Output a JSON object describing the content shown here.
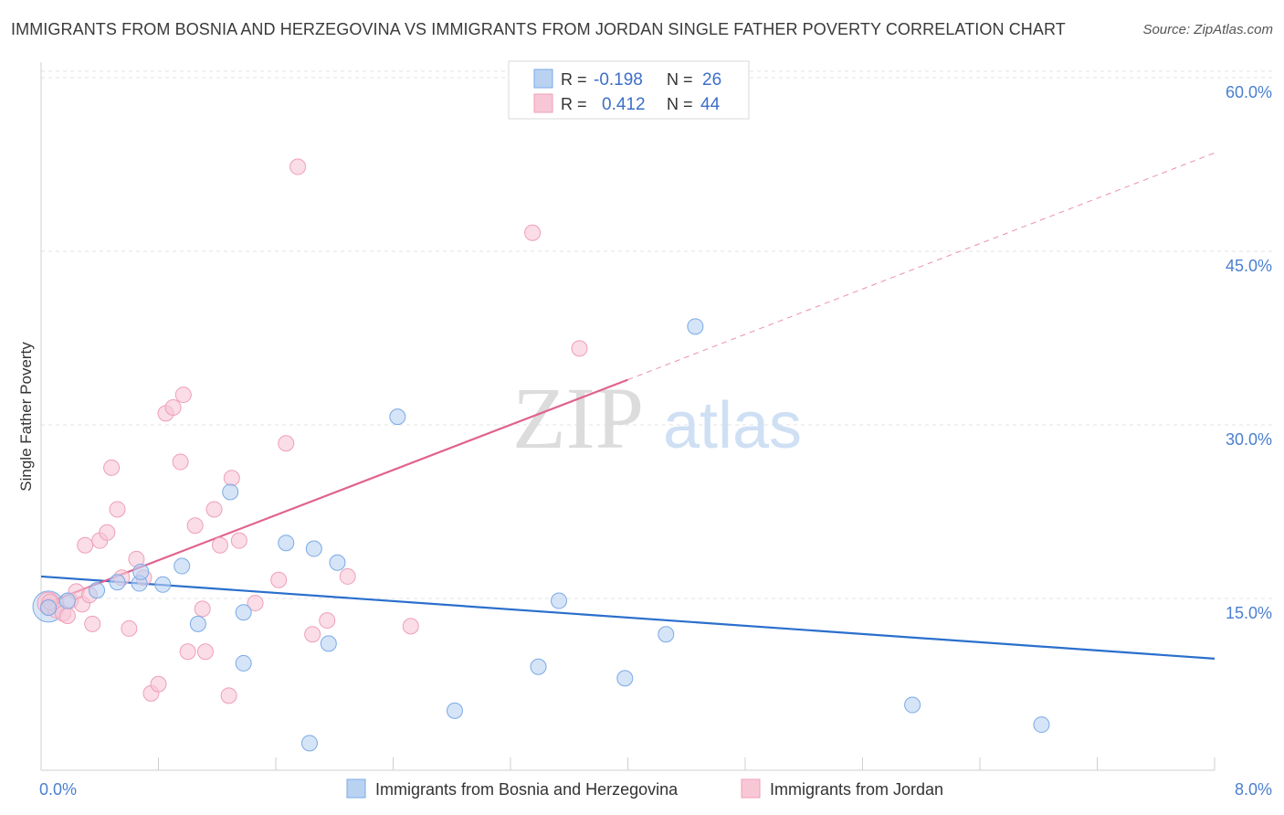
{
  "header": {
    "title": "IMMIGRANTS FROM BOSNIA AND HERZEGOVINA VS IMMIGRANTS FROM JORDAN SINGLE FATHER POVERTY CORRELATION CHART",
    "source": "Source: ZipAtlas.com"
  },
  "watermark": {
    "zip": "ZIP",
    "atlas": "atlas"
  },
  "chart_data": {
    "type": "scatter",
    "title": "IMMIGRANTS FROM BOSNIA AND HERZEGOVINA VS IMMIGRANTS FROM JORDAN SINGLE FATHER POVERTY CORRELATION CHART",
    "ylabel": "Single Father Poverty",
    "xlim": [
      0,
      8
    ],
    "ylim": [
      0,
      62
    ],
    "x_tick_labels": [
      {
        "value": 0,
        "label": "0.0%"
      },
      {
        "value": 8,
        "label": "8.0%"
      }
    ],
    "y_tick_labels": [
      {
        "value": 15,
        "label": "15.0%"
      },
      {
        "value": 30,
        "label": "30.0%"
      },
      {
        "value": 45,
        "label": "45.0%"
      },
      {
        "value": 60,
        "label": "60.0%"
      }
    ],
    "grid": true,
    "legend_placement": "top-center",
    "stats": [
      {
        "r_label": "R =",
        "r_value": "-0.198",
        "n_label": "N =",
        "n_value": "26"
      },
      {
        "r_label": "R =",
        "r_value": "0.412",
        "n_label": "N =",
        "n_value": "44"
      }
    ],
    "series": [
      {
        "name": "Immigrants from Bosnia and Herzegovina",
        "color": "#7aaae6",
        "fill": "#b9d2f2",
        "line_color": "#2a6fcc",
        "trend": {
          "x": [
            0,
            8
          ],
          "y": [
            16.9,
            9.8
          ],
          "dashed_from": null
        },
        "points": [
          [
            0.05,
            14.2
          ],
          [
            0.18,
            14.8
          ],
          [
            0.38,
            15.7
          ],
          [
            0.52,
            16.4
          ],
          [
            0.67,
            16.3
          ],
          [
            0.83,
            16.2
          ],
          [
            0.96,
            17.8
          ],
          [
            1.29,
            24.2
          ],
          [
            1.67,
            19.8
          ],
          [
            1.86,
            19.3
          ],
          [
            2.43,
            30.7
          ],
          [
            4.46,
            38.5
          ],
          [
            2.02,
            18.1
          ],
          [
            1.07,
            12.8
          ],
          [
            1.38,
            13.8
          ],
          [
            1.38,
            9.4
          ],
          [
            1.96,
            11.1
          ],
          [
            2.82,
            5.3
          ],
          [
            3.39,
            9.1
          ],
          [
            3.53,
            14.8
          ],
          [
            3.98,
            8.1
          ],
          [
            4.26,
            11.9
          ],
          [
            5.94,
            5.8
          ],
          [
            6.82,
            4.1
          ],
          [
            1.83,
            2.5
          ],
          [
            0.68,
            17.3
          ]
        ]
      },
      {
        "name": "Immigrants from Jordan",
        "color": "#ef9fb8",
        "fill": "#f7c7d6",
        "line_color": "#e0628e",
        "trend": {
          "x": [
            0,
            4.0
          ],
          "y": [
            14.4,
            33.9
          ],
          "dashed_to": [
            8,
            53.5
          ]
        },
        "points": [
          [
            0.05,
            14.3
          ],
          [
            0.1,
            14.0
          ],
          [
            0.15,
            13.7
          ],
          [
            0.2,
            14.8
          ],
          [
            0.24,
            15.6
          ],
          [
            0.28,
            14.5
          ],
          [
            0.33,
            15.3
          ],
          [
            0.35,
            12.8
          ],
          [
            0.4,
            20.0
          ],
          [
            0.45,
            20.7
          ],
          [
            0.48,
            26.3
          ],
          [
            0.52,
            22.7
          ],
          [
            0.55,
            16.8
          ],
          [
            0.6,
            12.4
          ],
          [
            0.65,
            18.4
          ],
          [
            0.7,
            16.8
          ],
          [
            0.75,
            6.8
          ],
          [
            0.8,
            7.6
          ],
          [
            0.85,
            31.0
          ],
          [
            0.9,
            31.5
          ],
          [
            0.95,
            26.8
          ],
          [
            0.97,
            32.6
          ],
          [
            1.0,
            10.4
          ],
          [
            1.05,
            21.3
          ],
          [
            1.1,
            14.1
          ],
          [
            1.12,
            10.4
          ],
          [
            1.18,
            22.7
          ],
          [
            1.22,
            19.6
          ],
          [
            1.28,
            6.6
          ],
          [
            1.3,
            25.4
          ],
          [
            1.35,
            20.0
          ],
          [
            1.46,
            14.6
          ],
          [
            1.62,
            16.6
          ],
          [
            1.67,
            28.4
          ],
          [
            1.75,
            52.3
          ],
          [
            1.85,
            11.9
          ],
          [
            1.95,
            13.1
          ],
          [
            2.09,
            16.9
          ],
          [
            2.52,
            12.6
          ],
          [
            3.35,
            46.6
          ],
          [
            3.67,
            36.6
          ],
          [
            0.3,
            19.6
          ],
          [
            0.18,
            13.5
          ],
          [
            0.06,
            14.7
          ]
        ]
      }
    ]
  }
}
